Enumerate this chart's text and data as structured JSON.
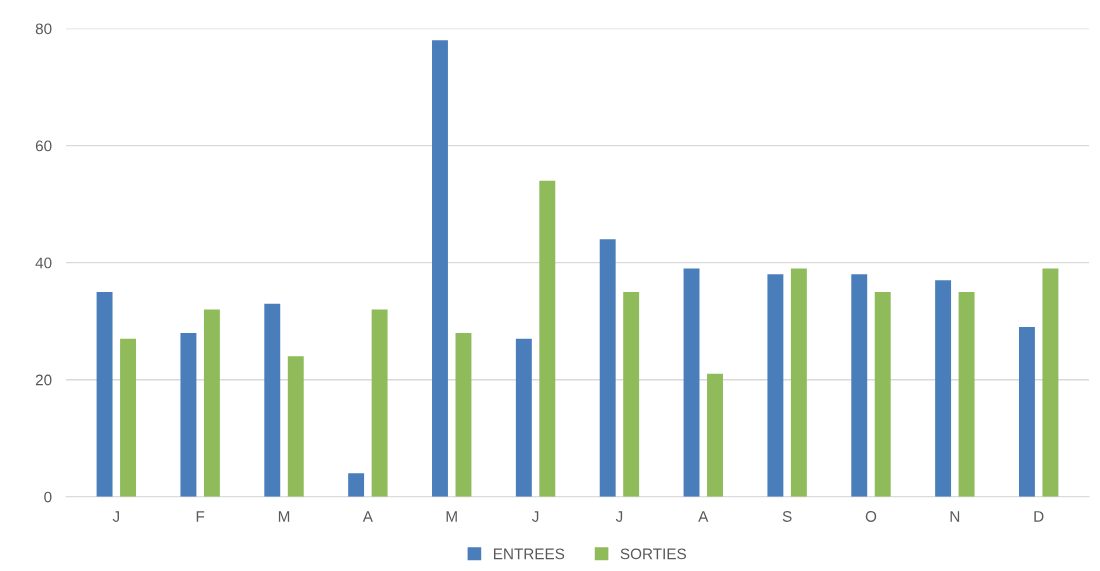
{
  "chart_data": {
    "type": "bar",
    "categories": [
      "J",
      "F",
      "M",
      "A",
      "M",
      "J",
      "J",
      "A",
      "S",
      "O",
      "N",
      "D"
    ],
    "series": [
      {
        "name": "ENTREES",
        "color": "#4a7ebb",
        "values": [
          35,
          28,
          33,
          4,
          78,
          27,
          44,
          39,
          38,
          38,
          37,
          29
        ]
      },
      {
        "name": "SORTIES",
        "color": "#8fbb5a",
        "values": [
          27,
          32,
          24,
          32,
          28,
          54,
          35,
          21,
          39,
          35,
          35,
          39
        ]
      }
    ],
    "ylim": [
      0,
      80
    ],
    "yticks": [
      0,
      20,
      40,
      60,
      80
    ],
    "grid": "y",
    "legend": "bottom"
  }
}
